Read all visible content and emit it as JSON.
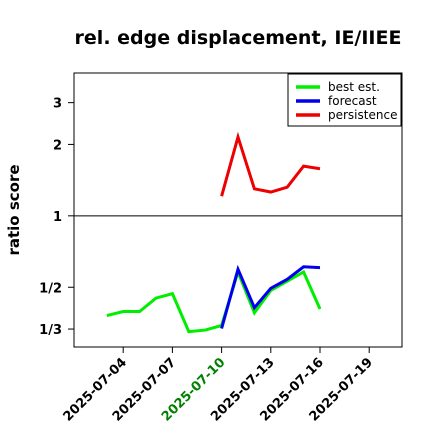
{
  "chart_data": {
    "type": "line",
    "title": "rel. edge displacement, IE/IIEE",
    "xlabel": "",
    "ylabel": "ratio score",
    "y_scale": "log",
    "xlim": [
      "2025-07-01",
      "2025-07-21"
    ],
    "ylim": [
      0.28,
      4.0
    ],
    "y_ticks": [
      {
        "value": 0.3333,
        "label": "1/3"
      },
      {
        "value": 0.5,
        "label": "1/2"
      },
      {
        "value": 1,
        "label": "1"
      },
      {
        "value": 2,
        "label": "2"
      },
      {
        "value": 3,
        "label": "3"
      }
    ],
    "reference_line": 1,
    "x_ticks": [
      {
        "date": "2025-07-04",
        "label": "2025-07-04",
        "color": "#000000"
      },
      {
        "date": "2025-07-07",
        "label": "2025-07-07",
        "color": "#000000"
      },
      {
        "date": "2025-07-10",
        "label": "2025-07-10",
        "color": "#008000"
      },
      {
        "date": "2025-07-13",
        "label": "2025-07-13",
        "color": "#000000"
      },
      {
        "date": "2025-07-16",
        "label": "2025-07-16",
        "color": "#000000"
      },
      {
        "date": "2025-07-19",
        "label": "2025-07-19",
        "color": "#000000"
      }
    ],
    "legend_position": "top-right",
    "series": [
      {
        "name": "best est.",
        "color": "#00ee00",
        "x": [
          "2025-07-03",
          "2025-07-04",
          "2025-07-05",
          "2025-07-06",
          "2025-07-07",
          "2025-07-08",
          "2025-07-09",
          "2025-07-10",
          "2025-07-11",
          "2025-07-12",
          "2025-07-13",
          "2025-07-14",
          "2025-07-15",
          "2025-07-16"
        ],
        "y": [
          0.38,
          0.395,
          0.395,
          0.45,
          0.47,
          0.325,
          0.33,
          0.345,
          0.58,
          0.39,
          0.485,
          0.53,
          0.58,
          0.405
        ]
      },
      {
        "name": "forecast",
        "color": "#0000ee",
        "x": [
          "2025-07-10",
          "2025-07-11",
          "2025-07-12",
          "2025-07-13",
          "2025-07-14",
          "2025-07-15",
          "2025-07-16"
        ],
        "y": [
          0.335,
          0.595,
          0.41,
          0.495,
          0.54,
          0.61,
          0.605
        ]
      },
      {
        "name": "persistence",
        "color": "#ee0000",
        "x": [
          "2025-07-10",
          "2025-07-11",
          "2025-07-12",
          "2025-07-13",
          "2025-07-14",
          "2025-07-15",
          "2025-07-16"
        ],
        "y": [
          1.21,
          2.15,
          1.3,
          1.26,
          1.32,
          1.62,
          1.58
        ]
      }
    ]
  }
}
